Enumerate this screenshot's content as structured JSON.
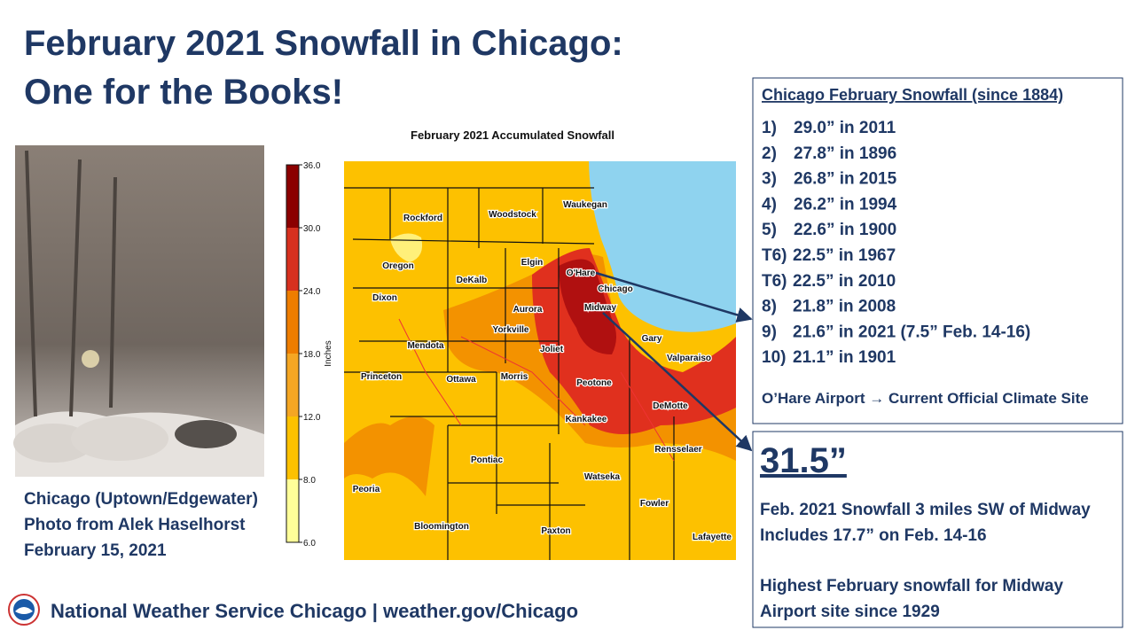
{
  "header": {
    "title_line1": "February 2021 Snowfall in Chicago:",
    "title_line2": "One for the Books!"
  },
  "photo": {
    "caption": [
      "Chicago (Uptown/Edgewater)",
      "Photo from Alek Haselhorst",
      "February 15, 2021"
    ]
  },
  "map": {
    "title": "February 2021 Accumulated Snowfall",
    "colorbar": {
      "label": "Inches",
      "ticks": [
        "6.0",
        "8.0",
        "12.0",
        "18.0",
        "24.0",
        "30.0",
        "36.0"
      ]
    },
    "places": [
      "Rockford",
      "Woodstock",
      "Waukegan",
      "Oregon",
      "DeKalb",
      "Elgin",
      "O'Hare",
      "Chicago",
      "Dixon",
      "Aurora",
      "Midway",
      "Yorkville",
      "Mendota",
      "Joliet",
      "Gary",
      "Valparaiso",
      "Princeton",
      "Ottawa",
      "Morris",
      "Peotone",
      "Kankakee",
      "DeMotte",
      "Rensselaer",
      "Pontiac",
      "Watseka",
      "Peoria",
      "Fowler",
      "Bloomington",
      "Paxton",
      "Lafayette"
    ]
  },
  "rankings": {
    "title": "Chicago February Snowfall (since 1884)",
    "items": [
      {
        "rank": "1)",
        "text": "29.0” in 2011"
      },
      {
        "rank": "2)",
        "text": "27.8” in 1896"
      },
      {
        "rank": "3)",
        "text": "26.8” in 2015"
      },
      {
        "rank": "4)",
        "text": "26.2” in 1994"
      },
      {
        "rank": "5)",
        "text": "22.6” in 1900"
      },
      {
        "rank": "T6)",
        "text": "22.5” in 1967"
      },
      {
        "rank": "T6)",
        "text": "22.5” in 2010"
      },
      {
        "rank": "8)",
        "text": "21.8” in 2008"
      },
      {
        "rank": "9)",
        "text": "21.6” in 2021 (7.5” Feb. 14-16)"
      },
      {
        "rank": "10)",
        "text": "21.1” in 1901"
      }
    ],
    "note": "O’Hare Airport → Current Official Climate Site"
  },
  "midway": {
    "total": "31.5”",
    "lines": [
      "Feb. 2021 Snowfall 3 miles SW of Midway",
      "Includes 17.7” on Feb. 14-16",
      "Highest February snowfall for Midway",
      "Airport site since 1929"
    ]
  },
  "footer": {
    "text": "National Weather Service Chicago | weather.gov/Chicago"
  }
}
